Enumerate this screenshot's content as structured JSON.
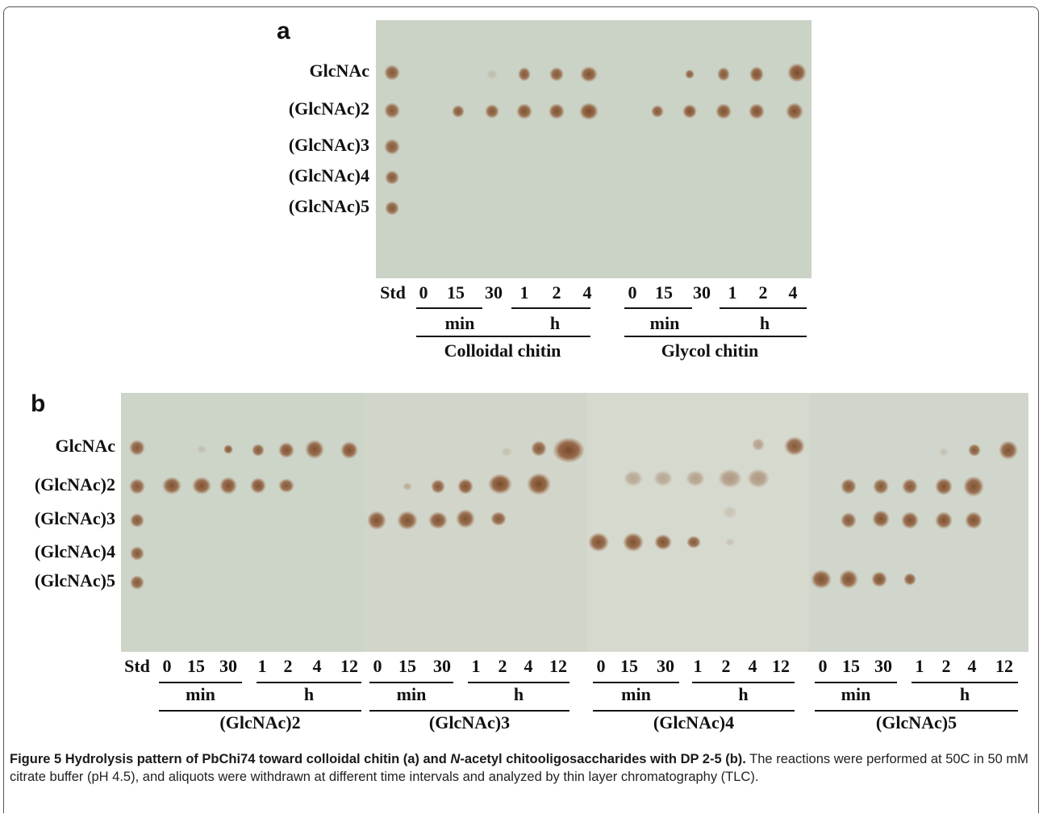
{
  "panel_a": {
    "label": "a",
    "row_labels": [
      "GlcNAc",
      "(GlcNAc)2",
      "(GlcNAc)3",
      "(GlcNAc)4",
      "(GlcNAc)5"
    ],
    "lane_labels": [
      "Std",
      "0",
      "15",
      "30",
      "1",
      "2",
      "4",
      "0",
      "15",
      "30",
      "1",
      "2",
      "4"
    ],
    "unit_labels": [
      "min",
      "h",
      "min",
      "h"
    ],
    "group_labels": [
      "Colloidal chitin",
      "Glycol chitin"
    ]
  },
  "panel_b": {
    "label": "b",
    "row_labels": [
      "GlcNAc",
      "(GlcNAc)2",
      "(GlcNAc)3",
      "(GlcNAc)4",
      "(GlcNAc)5"
    ],
    "lane_labels": [
      "Std",
      "0",
      "15",
      "30",
      "1",
      "2",
      "4",
      "12",
      "0",
      "15",
      "30",
      "1",
      "2",
      "4",
      "12",
      "0",
      "15",
      "30",
      "1",
      "2",
      "4",
      "12",
      "0",
      "15",
      "30",
      "1",
      "2",
      "4",
      "12"
    ],
    "unit_labels": [
      "min",
      "h",
      "min",
      "h",
      "min",
      "h",
      "min",
      "h"
    ],
    "group_labels": [
      "(GlcNAc)2",
      "(GlcNAc)3",
      "(GlcNAc)4",
      "(GlcNAc)5"
    ]
  },
  "caption": {
    "title_start": "Figure 5 Hydrolysis pattern of PbChi74 toward colloidal chitin (a) and ",
    "title_italic": "N",
    "title_end": "-acetyl chitooligosaccharides with DP 2-5 (b).",
    "body": " The reactions were performed at 50C in 50 mM citrate buffer (pH 4.5), and aliquots were withdrawn at different time intervals and analyzed by thin layer chromatography (TLC)."
  }
}
